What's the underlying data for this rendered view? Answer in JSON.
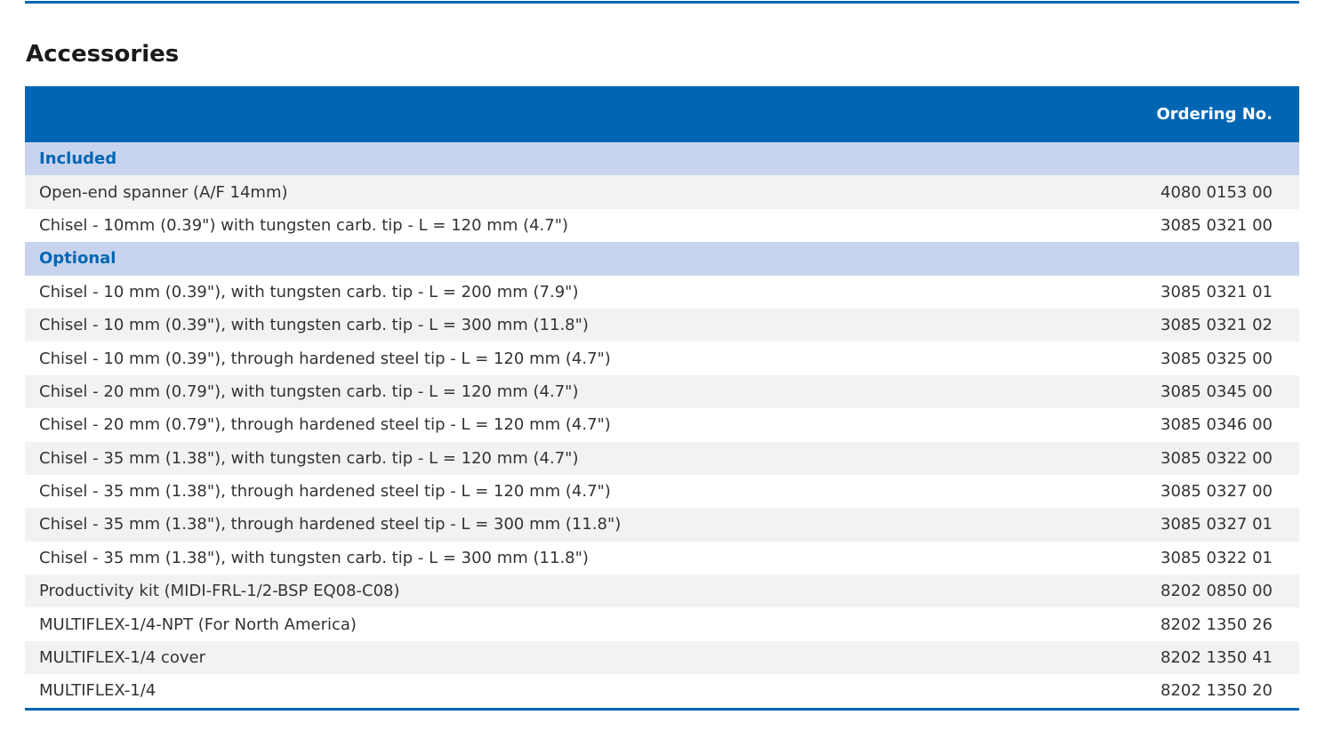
{
  "title": "Accessories",
  "table": {
    "header": "Ordering No.",
    "sections": [
      {
        "label": "Included",
        "rows": [
          [
            "Open-end spanner (A/F 14mm)",
            "4080 0153 00"
          ],
          [
            "Chisel - 10mm (0.39\") with tungsten carb. tip - L = 120 mm (4.7\")",
            "3085 0321 00"
          ]
        ]
      },
      {
        "label": "Optional",
        "rows": [
          [
            "Chisel - 10 mm (0.39\"), with tungsten carb. tip - L = 200 mm (7.9\")",
            "3085 0321 01"
          ],
          [
            "Chisel - 10 mm (0.39\"), with tungsten carb. tip - L = 300 mm (11.8\")",
            "3085 0321 02"
          ],
          [
            "Chisel - 10 mm (0.39\"), through hardened steel tip - L = 120 mm (4.7\")",
            "3085 0325 00"
          ],
          [
            "Chisel - 20 mm (0.79\"), with tungsten carb. tip - L = 120 mm (4.7\")",
            "3085 0345 00"
          ],
          [
            "Chisel - 20 mm (0.79\"), through hardened steel tip - L = 120 mm (4.7\")",
            "3085 0346 00"
          ],
          [
            "Chisel - 35 mm (1.38\"), with tungsten carb. tip - L = 120 mm (4.7\")",
            "3085 0322 00"
          ],
          [
            "Chisel - 35 mm (1.38\"), through hardened steel tip - L = 120 mm (4.7\")",
            "3085 0327 00"
          ],
          [
            "Chisel - 35 mm (1.38\"), through hardened steel tip - L = 300 mm (11.8\")",
            "3085 0327 01"
          ],
          [
            "Chisel - 35 mm (1.38\"), with tungsten carb. tip - L = 300 mm (11.8\")",
            "3085 0322 01"
          ],
          [
            "Productivity kit (MIDI-FRL-1/2-BSP EQ08-C08)",
            "8202 0850 00"
          ],
          [
            "MULTIFLEX-1/4-NPT (For North America)",
            "8202 1350 26"
          ],
          [
            "MULTIFLEX-1/4 cover",
            "8202 1350 41"
          ],
          [
            "MULTIFLEX-1/4",
            "8202 1350 20"
          ]
        ]
      }
    ]
  }
}
